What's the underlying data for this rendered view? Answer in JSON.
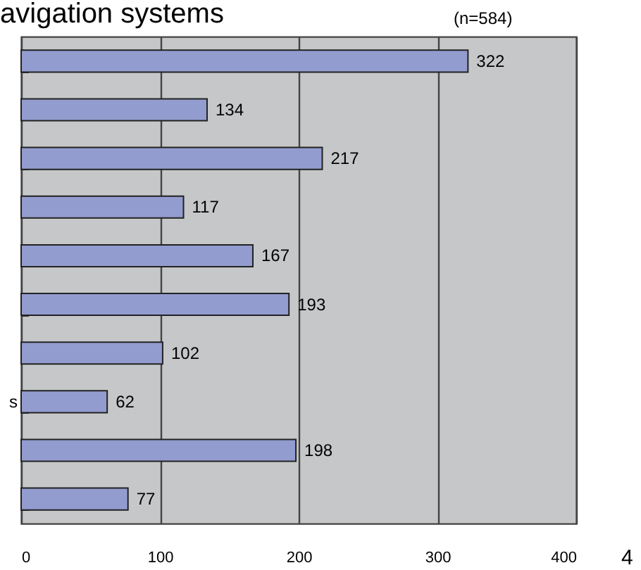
{
  "chart_data": {
    "type": "bar",
    "orientation": "horizontal",
    "title": "avigation systems",
    "annotations": [
      "(n=584)",
      "4"
    ],
    "categories": [
      null,
      null,
      null,
      null,
      null,
      null,
      null,
      "s",
      null,
      null
    ],
    "values": [
      322,
      134,
      217,
      117,
      167,
      193,
      102,
      62,
      198,
      77
    ],
    "color": "#939ccf",
    "xlim": [
      0,
      400
    ],
    "xticks": [
      0,
      100,
      200,
      300,
      400
    ],
    "grid": "x",
    "data_labels": true
  }
}
